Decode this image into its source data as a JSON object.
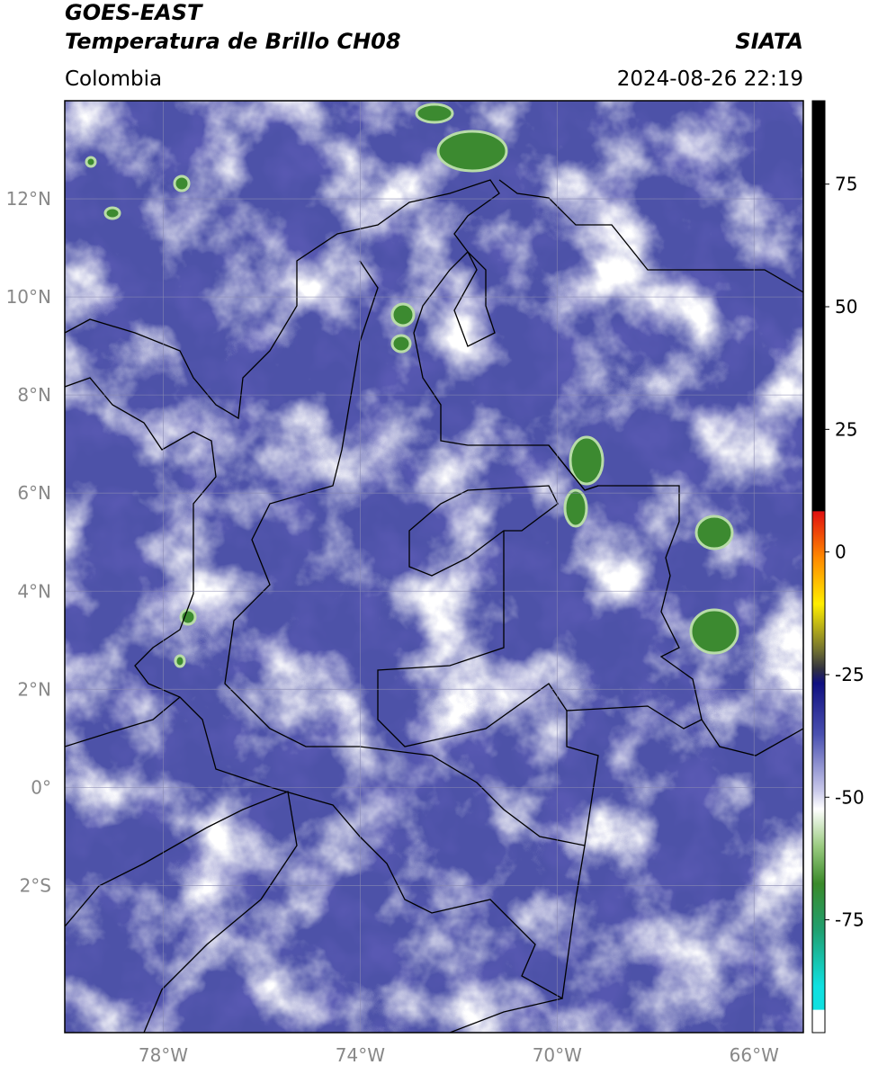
{
  "header": {
    "line1": "GOES-EAST",
    "line2": "Temperatura de Brillo CH08",
    "source": "SIATA",
    "region": "Colombia",
    "datetime": "2024-08-26 22:19"
  },
  "map": {
    "lonlim": [
      -80,
      -65
    ],
    "latlim": [
      -5,
      14
    ],
    "lon_ticks": [
      {
        "value": -78,
        "label": "78°W"
      },
      {
        "value": -74,
        "label": "74°W"
      },
      {
        "value": -70,
        "label": "70°W"
      },
      {
        "value": -66,
        "label": "66°W"
      }
    ],
    "lat_ticks": [
      {
        "value": 12,
        "label": "12°N"
      },
      {
        "value": 10,
        "label": "10°N"
      },
      {
        "value": 8,
        "label": "8°N"
      },
      {
        "value": 6,
        "label": "6°N"
      },
      {
        "value": 4,
        "label": "4°N"
      },
      {
        "value": 2,
        "label": "2°N"
      },
      {
        "value": 0,
        "label": "0°"
      },
      {
        "value": -2,
        "label": "2°S"
      }
    ]
  },
  "colorbar": {
    "lim": [
      -98,
      92
    ],
    "ticks": [
      75,
      50,
      25,
      0,
      -25,
      -50,
      -75
    ]
  }
}
